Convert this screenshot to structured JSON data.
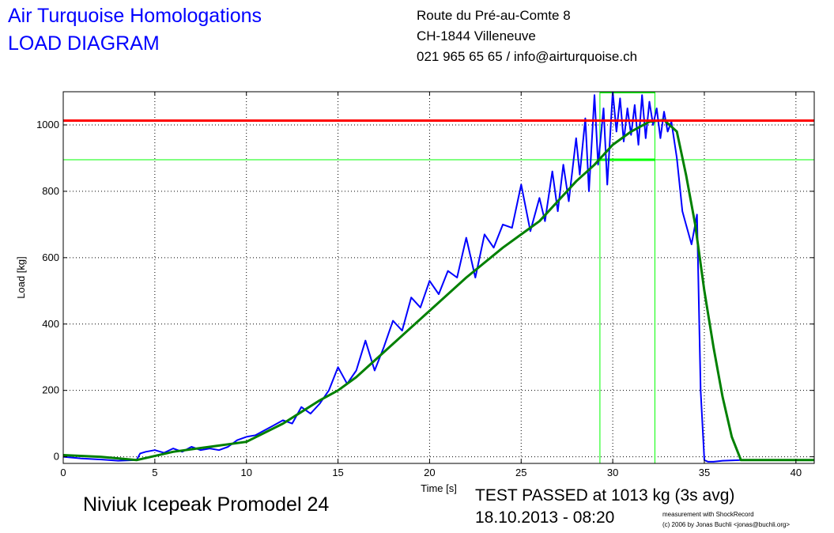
{
  "header": {
    "title_line1": "Air Turquoise Homologations",
    "title_line2": "LOAD DIAGRAM",
    "address_line1": "Route du Pré-au-Comte 8",
    "address_line2": "CH-1844 Villeneuve",
    "address_line3": "021 965 65 65 / info@airturquoise.ch"
  },
  "footer": {
    "model": "Niviuk Icepeak Promodel 24",
    "verdict": "TEST PASSED at 1013 kg (3s avg)",
    "datetime": "18.10.2013 - 08:20",
    "credit_line1": "measurement with ShockRecord",
    "credit_line2": "(c) 2006 by Jonas Buchli <jonas@buchli.org>"
  },
  "colors": {
    "raw_load": "#0000ff",
    "avg_load": "#008000",
    "limit": "#ff0000",
    "window": "#00ff00",
    "title": "#0000ff"
  },
  "chart_data": {
    "type": "line",
    "xlabel": "Time [s]",
    "ylabel": "Load [kg]",
    "xlim": [
      0,
      41
    ],
    "ylim": [
      -20,
      1100
    ],
    "xticks": [
      0,
      5,
      10,
      15,
      20,
      25,
      30,
      35,
      40
    ],
    "yticks": [
      0,
      200,
      400,
      600,
      800,
      1000
    ],
    "grid": true,
    "reference_lines": {
      "limit_load": 1013,
      "window_level": 895,
      "window_start": 29.3,
      "window_end": 32.3
    },
    "series": [
      {
        "type": "raw",
        "color": "#0000ff",
        "x": [
          0,
          1,
          2,
          3,
          4,
          4.2,
          4.5,
          5,
          5.5,
          6,
          6.5,
          7,
          7.5,
          8,
          8.5,
          9,
          9.5,
          10,
          10.5,
          11,
          11.5,
          12,
          12.5,
          13,
          13.5,
          14,
          14.5,
          15,
          15.5,
          16,
          16.5,
          17,
          17.5,
          18,
          18.5,
          19,
          19.5,
          20,
          20.5,
          21,
          21.5,
          22,
          22.5,
          23,
          23.5,
          24,
          24.5,
          25,
          25.5,
          26,
          26.3,
          26.7,
          27,
          27.3,
          27.6,
          28,
          28.2,
          28.5,
          28.7,
          29,
          29.2,
          29.5,
          29.7,
          30,
          30.2,
          30.4,
          30.6,
          30.8,
          31,
          31.2,
          31.4,
          31.6,
          31.8,
          32,
          32.2,
          32.4,
          32.6,
          32.8,
          33,
          33.2,
          33.5,
          33.8,
          34,
          34.3,
          34.6,
          34.8,
          35,
          35.2,
          35.5,
          36,
          37,
          38,
          39,
          41
        ],
        "y": [
          0,
          -5,
          -8,
          -12,
          -10,
          10,
          15,
          20,
          12,
          25,
          15,
          30,
          20,
          25,
          20,
          30,
          50,
          60,
          65,
          80,
          95,
          110,
          100,
          150,
          130,
          160,
          200,
          270,
          220,
          260,
          350,
          260,
          330,
          410,
          380,
          480,
          450,
          530,
          490,
          560,
          540,
          660,
          540,
          670,
          630,
          700,
          690,
          820,
          680,
          780,
          710,
          860,
          740,
          880,
          770,
          960,
          850,
          1020,
          800,
          1090,
          880,
          1050,
          820,
          1100,
          980,
          1080,
          950,
          1050,
          970,
          1060,
          940,
          1090,
          960,
          1070,
          1000,
          1050,
          960,
          1040,
          980,
          1010,
          900,
          740,
          700,
          640,
          730,
          200,
          -10,
          -15,
          -15,
          -12,
          -10,
          -10,
          -10,
          -10
        ]
      },
      {
        "type": "average",
        "color": "#008000",
        "x": [
          0,
          2,
          4,
          6,
          8,
          10,
          12,
          14,
          15,
          16,
          18,
          20,
          22,
          24,
          25,
          26,
          28,
          29,
          30,
          31,
          32,
          32.8,
          33.5,
          34,
          34.5,
          35,
          35.5,
          36,
          36.5,
          37,
          38,
          41
        ],
        "y": [
          5,
          0,
          -10,
          15,
          30,
          45,
          100,
          170,
          200,
          240,
          340,
          440,
          540,
          630,
          670,
          710,
          830,
          880,
          940,
          980,
          1010,
          1015,
          980,
          850,
          700,
          500,
          330,
          180,
          60,
          -10,
          -10,
          -10
        ]
      }
    ]
  }
}
